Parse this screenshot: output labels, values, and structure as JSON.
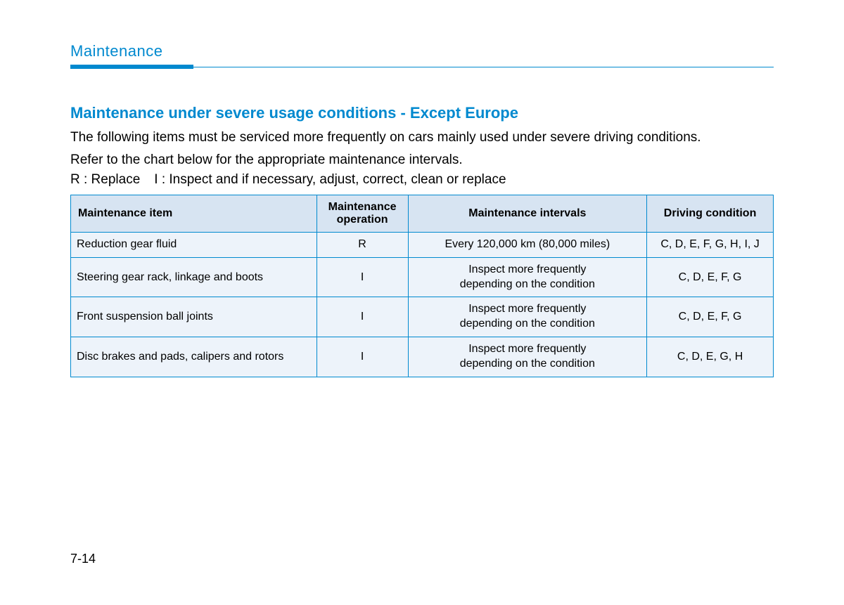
{
  "section_title": "Maintenance",
  "subtitle": "Maintenance under severe usage conditions - Except Europe",
  "description_line1": "The following items must be serviced more frequently on cars mainly used under severe driving conditions.",
  "description_line2": "Refer to the chart below for the appropriate maintenance intervals.",
  "legend_r": "R : Replace",
  "legend_i": "I : Inspect and if necessary, adjust, correct, clean or replace",
  "table": {
    "columns": {
      "item": "Maintenance item",
      "operation": "Maintenance\noperation",
      "intervals": "Maintenance intervals",
      "condition": "Driving condition"
    },
    "rows": [
      {
        "item": "Reduction gear fluid",
        "operation": "R",
        "intervals": "Every 120,000 km (80,000 miles)",
        "condition": "C, D, E, F, G, H, I, J"
      },
      {
        "item": "Steering gear rack, linkage and boots",
        "operation": "I",
        "intervals": "Inspect more frequently\ndepending on the condition",
        "condition": "C, D, E, F, G"
      },
      {
        "item": "Front suspension ball joints",
        "operation": "I",
        "intervals": "Inspect more frequently\ndepending on the condition",
        "condition": "C, D, E, F, G"
      },
      {
        "item": "Disc brakes and pads, calipers and rotors",
        "operation": "I",
        "intervals": "Inspect more frequently\ndepending on the condition",
        "condition": "C, D, E, G, H"
      }
    ],
    "column_widths_pct": [
      35,
      13,
      34,
      18
    ],
    "header_bg": "#d7e4f2",
    "row_bg": "#edf3fa",
    "border_color": "#0089cf"
  },
  "accent_color": "#0089cf",
  "background_color": "#ffffff",
  "page_number": "7-14"
}
